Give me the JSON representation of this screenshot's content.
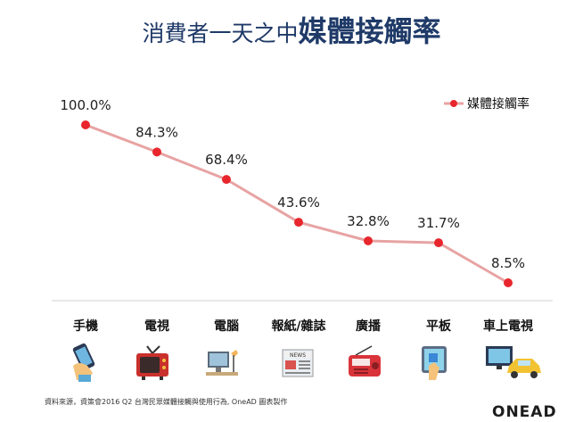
{
  "title": {
    "prefix": "消費者一天之中",
    "emphasis": "媒體接觸率"
  },
  "chart_data": {
    "type": "line",
    "categories": [
      "手機",
      "電視",
      "電腦",
      "報紙/雜誌",
      "廣播",
      "平板",
      "車上電視"
    ],
    "series": [
      {
        "name": "媒體接觸率",
        "values": [
          100.0,
          84.3,
          68.4,
          43.6,
          32.8,
          31.7,
          8.5
        ],
        "labels": [
          "100.0%",
          "84.3%",
          "68.4%",
          "43.6%",
          "32.8%",
          "31.7%",
          "8.5%"
        ]
      }
    ],
    "ylim": [
      0,
      100
    ],
    "grid": false,
    "legend": "top-right",
    "colors": {
      "line": "#e8a3a3",
      "marker": "#e8262d"
    }
  },
  "icons": [
    "phone-icon",
    "tv-icon",
    "computer-icon",
    "newspaper-icon",
    "radio-icon",
    "tablet-icon",
    "car-tv-icon"
  ],
  "source": "資料來源，資策會2016 Q2 台灣民眾媒體接觸與使用行為, OneAD 圖表製作",
  "logo": "ONEAD"
}
